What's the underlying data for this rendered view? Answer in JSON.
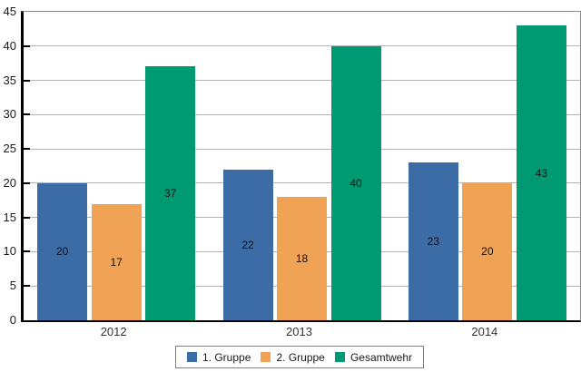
{
  "chart_data": {
    "type": "bar",
    "categories": [
      "2012",
      "2013",
      "2014"
    ],
    "series": [
      {
        "name": "1. Gruppe",
        "color": "#3c6ca6",
        "values": [
          20,
          22,
          23
        ]
      },
      {
        "name": "2. Gruppe",
        "color": "#f0a355",
        "values": [
          17,
          18,
          20
        ]
      },
      {
        "name": "Gesamtwehr",
        "color": "#009a72",
        "values": [
          37,
          40,
          43
        ]
      }
    ],
    "title": "",
    "xlabel": "",
    "ylabel": "",
    "ylim": [
      0,
      45
    ],
    "ytick_step": 5,
    "ytick_labels": [
      "0",
      "5",
      "10",
      "15",
      "20",
      "25",
      "30",
      "35",
      "40",
      "45"
    ],
    "grid": true,
    "show_value_labels": true,
    "legend_position": "bottom"
  },
  "colors": {
    "background": "#ffffff",
    "gridline": "#b3b3b3",
    "frame": "#8a8a8a",
    "axis": "#000000",
    "text": "#1a1a1a"
  }
}
